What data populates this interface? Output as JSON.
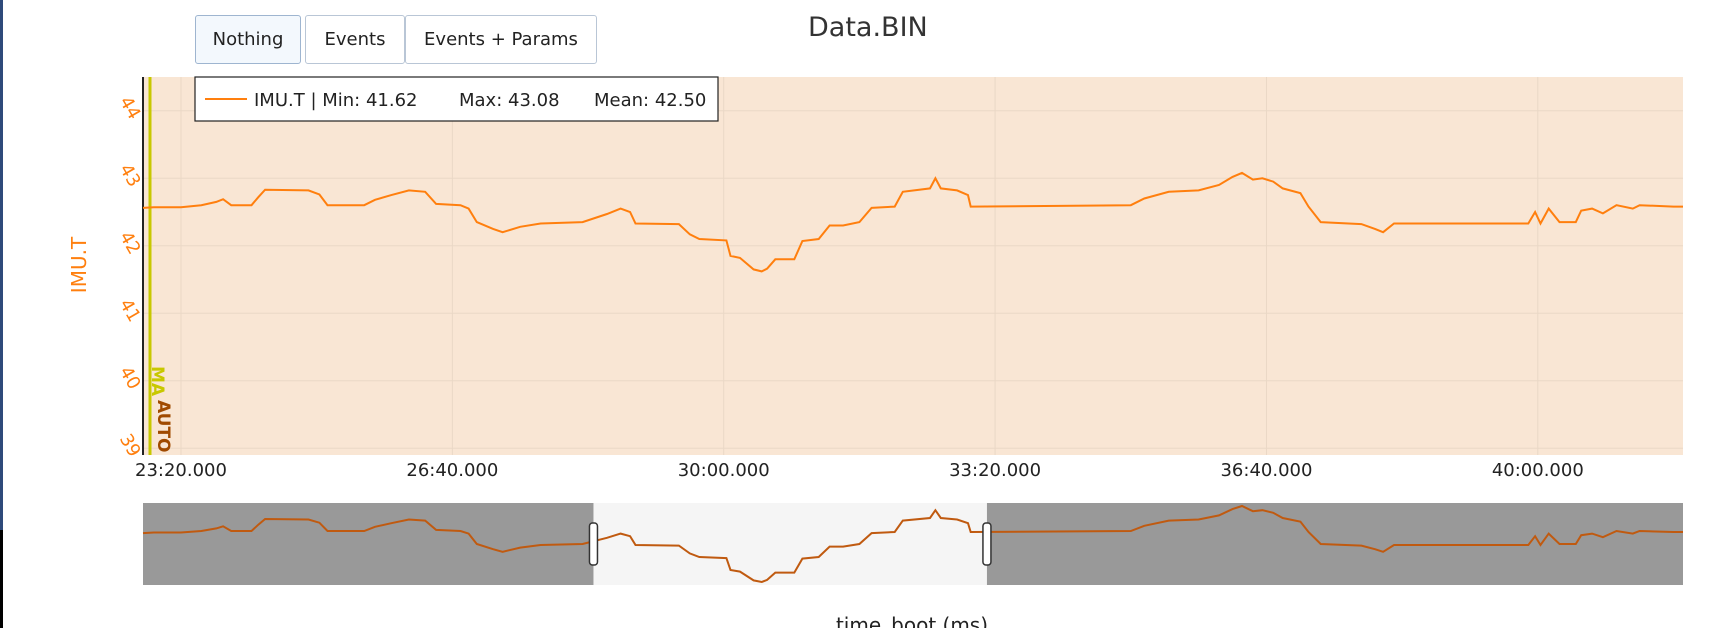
{
  "toolbar": {
    "buttons": [
      {
        "label": "Nothing",
        "active": true
      },
      {
        "label": "Events",
        "active": false
      },
      {
        "label": "Events + Params",
        "active": false
      }
    ]
  },
  "title": "Data.BIN",
  "colors": {
    "series": "#ff7f0e",
    "plot_bg": "#f9e6d4",
    "grid": "#ead8c6",
    "range_bg": "#999999",
    "range_window": "#f5f5f5",
    "range_line": "#c05a10",
    "mode_ma": "#c8c800",
    "mode_auto": "#a04a00"
  },
  "modes": [
    {
      "label": "MA",
      "color": "#c8c800"
    },
    {
      "label": "AUTO",
      "color": "#a04a00"
    }
  ],
  "chart_data": {
    "type": "line",
    "title": "Data.BIN",
    "xlabel": "time_boot (ms)",
    "ylabel": "IMU.T",
    "x_unit": "mm:ss.ms of time_boot",
    "xlim": [
      "22:52",
      "41:47"
    ],
    "ylim": [
      38.9,
      44.5
    ],
    "x_ticks": [
      "23:20.000",
      "26:40.000",
      "30:00.000",
      "33:20.000",
      "36:40.000",
      "40:00.000"
    ],
    "y_ticks": [
      39,
      40,
      41,
      42,
      43,
      44
    ],
    "grid": true,
    "legend": {
      "placement": "top-left",
      "entries": [
        {
          "series": "IMU.T",
          "min": "41.62",
          "max": "43.08",
          "mean": "42.50"
        }
      ],
      "text": {
        "name": "IMU.T | Min: 41.62",
        "max": "Max: 43.08",
        "mean": "Mean: 42.50"
      }
    },
    "series": [
      {
        "name": "IMU.T",
        "points": [
          [
            "22:52",
            42.56
          ],
          [
            "23:00",
            42.57
          ],
          [
            "23:20",
            42.57
          ],
          [
            "23:35",
            42.6
          ],
          [
            "23:46",
            42.65
          ],
          [
            "23:51",
            42.69
          ],
          [
            "23:57",
            42.6
          ],
          [
            "24:12",
            42.6
          ],
          [
            "24:17",
            42.72
          ],
          [
            "24:22",
            42.83
          ],
          [
            "24:54",
            42.82
          ],
          [
            "25:02",
            42.76
          ],
          [
            "25:08",
            42.6
          ],
          [
            "25:35",
            42.6
          ],
          [
            "25:43",
            42.68
          ],
          [
            "25:55",
            42.75
          ],
          [
            "26:08",
            42.82
          ],
          [
            "26:20",
            42.8
          ],
          [
            "26:28",
            42.62
          ],
          [
            "26:46",
            42.6
          ],
          [
            "26:52",
            42.55
          ],
          [
            "26:58",
            42.35
          ],
          [
            "27:10",
            42.25
          ],
          [
            "27:17",
            42.2
          ],
          [
            "27:30",
            42.28
          ],
          [
            "27:45",
            42.33
          ],
          [
            "28:16",
            42.35
          ],
          [
            "28:34",
            42.47
          ],
          [
            "28:44",
            42.55
          ],
          [
            "28:51",
            42.5
          ],
          [
            "28:55",
            42.33
          ],
          [
            "29:27",
            42.32
          ],
          [
            "29:35",
            42.17
          ],
          [
            "29:42",
            42.1
          ],
          [
            "30:02",
            42.08
          ],
          [
            "30:05",
            41.85
          ],
          [
            "30:12",
            41.82
          ],
          [
            "30:22",
            41.65
          ],
          [
            "30:28",
            41.62
          ],
          [
            "30:32",
            41.66
          ],
          [
            "30:38",
            41.8
          ],
          [
            "30:52",
            41.8
          ],
          [
            "30:58",
            42.07
          ],
          [
            "31:10",
            42.1
          ],
          [
            "31:18",
            42.3
          ],
          [
            "31:28",
            42.3
          ],
          [
            "31:40",
            42.35
          ],
          [
            "31:49",
            42.56
          ],
          [
            "32:06",
            42.58
          ],
          [
            "32:12",
            42.8
          ],
          [
            "32:32",
            42.85
          ],
          [
            "32:36",
            43.0
          ],
          [
            "32:40",
            42.85
          ],
          [
            "32:52",
            42.82
          ],
          [
            "33:00",
            42.75
          ],
          [
            "33:02",
            42.58
          ],
          [
            "35:00",
            42.6
          ],
          [
            "35:10",
            42.7
          ],
          [
            "35:28",
            42.8
          ],
          [
            "35:50",
            42.82
          ],
          [
            "36:05",
            42.9
          ],
          [
            "36:15",
            43.02
          ],
          [
            "36:22",
            43.08
          ],
          [
            "36:30",
            42.98
          ],
          [
            "36:37",
            43.0
          ],
          [
            "36:45",
            42.95
          ],
          [
            "36:52",
            42.85
          ],
          [
            "37:05",
            42.78
          ],
          [
            "37:11",
            42.58
          ],
          [
            "37:20",
            42.35
          ],
          [
            "37:50",
            42.32
          ],
          [
            "38:00",
            42.25
          ],
          [
            "38:06",
            42.2
          ],
          [
            "38:14",
            42.33
          ],
          [
            "39:53",
            42.33
          ],
          [
            "39:58",
            42.5
          ],
          [
            "40:02",
            42.33
          ],
          [
            "40:08",
            42.55
          ],
          [
            "40:16",
            42.35
          ],
          [
            "40:28",
            42.35
          ],
          [
            "40:32",
            42.52
          ],
          [
            "40:40",
            42.55
          ],
          [
            "40:48",
            42.48
          ],
          [
            "40:58",
            42.6
          ],
          [
            "41:10",
            42.55
          ],
          [
            "41:15",
            42.6
          ],
          [
            "41:40",
            42.58
          ],
          [
            "41:47",
            42.58
          ]
        ]
      }
    ],
    "range_slider": {
      "window_start": "28:24",
      "window_end": "33:14"
    }
  }
}
